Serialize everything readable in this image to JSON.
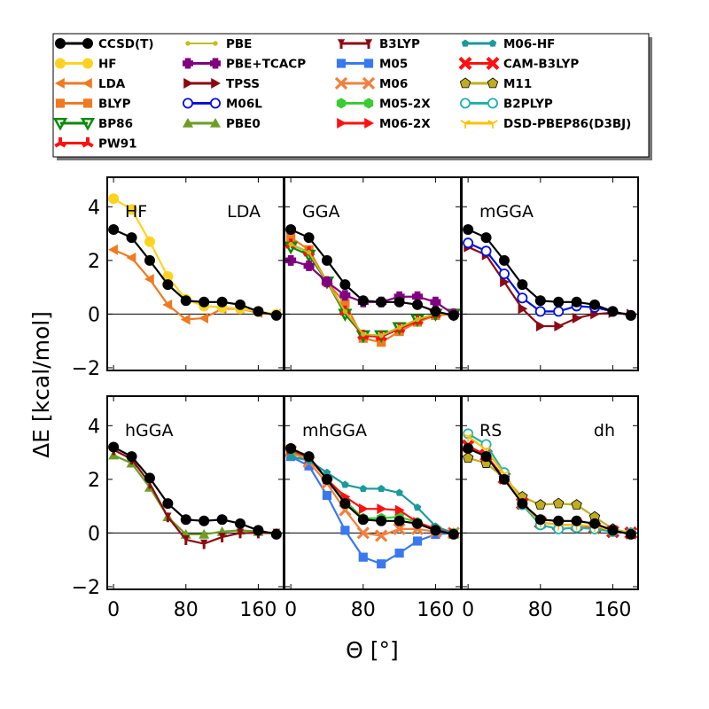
{
  "chart_data": {
    "type": "line",
    "title": "",
    "xlabel": "Θ [°]",
    "ylabel": "ΔE [kcal/mol]",
    "xlim": [
      -7,
      188
    ],
    "ylim": [
      -2.1,
      5.1
    ],
    "xticks": [
      0,
      80,
      160
    ],
    "xtick_labels": [
      "0",
      "80",
      "160"
    ],
    "yticks": [
      -2,
      0,
      2,
      4
    ],
    "ytick_labels": [
      "−2",
      "0",
      "2",
      "4"
    ],
    "x": [
      0,
      20,
      40,
      60,
      80,
      100,
      120,
      140,
      160,
      180
    ],
    "legend": {
      "placement": "top",
      "entries": [
        {
          "name": "CCSD(T)",
          "color": "#000000",
          "marker": "circle"
        },
        {
          "name": "HF",
          "color": "#FFD21F",
          "marker": "circle"
        },
        {
          "name": "LDA",
          "color": "#F07A20",
          "marker": "triangle-left"
        },
        {
          "name": "BLYP",
          "color": "#F07A20",
          "marker": "square"
        },
        {
          "name": "BP86",
          "color": "#0A8A0A",
          "marker": "triangle-down-open"
        },
        {
          "name": "PW91",
          "color": "#FF1010",
          "marker": "tri-star"
        },
        {
          "name": "PBE",
          "color": "#BFBF1F",
          "marker": "point"
        },
        {
          "name": "PBE+TCACP",
          "color": "#800080",
          "marker": "plus"
        },
        {
          "name": "TPSS",
          "color": "#8B0A14",
          "marker": "triangle-right"
        },
        {
          "name": "M06L",
          "color": "#0010E0",
          "marker": "circle-open"
        },
        {
          "name": "PBE0",
          "color": "#6B9E23",
          "marker": "triangle-up"
        },
        {
          "name": "B3LYP",
          "color": "#8B0A14",
          "marker": "dagger"
        },
        {
          "name": "M05",
          "color": "#3A78F0",
          "marker": "square"
        },
        {
          "name": "M06",
          "color": "#F08040",
          "marker": "x"
        },
        {
          "name": "M05-2X",
          "color": "#3ACD32",
          "marker": "hexagon"
        },
        {
          "name": "M06-2X",
          "color": "#FF1010",
          "marker": "triangle-right"
        },
        {
          "name": "M06-HF",
          "color": "#1A9A9A",
          "marker": "pentagon-small"
        },
        {
          "name": "CAM-B3LYP",
          "color": "#FF1010",
          "marker": "x-bold"
        },
        {
          "name": "M11",
          "color": "#BFAD1F",
          "marker": "pentagon"
        },
        {
          "name": "B2PLYP",
          "color": "#20B2AA",
          "marker": "circle-open"
        },
        {
          "name": "DSD-PBEP86(D3BJ)",
          "color": "#FFC000",
          "marker": "tri-down"
        }
      ]
    },
    "panels": [
      {
        "labels": [
          "HF",
          "LDA"
        ],
        "series": [
          {
            "name": "LDA",
            "values": [
              2.4,
              2.1,
              1.3,
              0.35,
              -0.2,
              -0.15,
              0.2,
              0.2,
              0.05,
              0.0
            ]
          },
          {
            "name": "HF",
            "values": [
              4.3,
              3.9,
              2.7,
              1.4,
              0.55,
              0.3,
              0.25,
              0.2,
              0.1,
              0.0
            ]
          },
          {
            "name": "CCSD(T)",
            "values": [
              3.15,
              2.85,
              2.0,
              1.1,
              0.5,
              0.45,
              0.45,
              0.35,
              0.1,
              -0.05
            ]
          }
        ]
      },
      {
        "labels": [
          "GGA"
        ],
        "series": [
          {
            "name": "BLYP",
            "values": [
              2.85,
              2.4,
              1.2,
              0.4,
              -0.9,
              -1.05,
              -0.65,
              -0.3,
              -0.05,
              0.0
            ]
          },
          {
            "name": "BP86",
            "values": [
              2.5,
              2.2,
              1.2,
              0.0,
              -0.8,
              -0.8,
              -0.5,
              -0.2,
              0.0,
              0.0
            ]
          },
          {
            "name": "PW91",
            "values": [
              2.6,
              2.3,
              1.2,
              0.1,
              -0.8,
              -0.85,
              -0.55,
              -0.25,
              0.0,
              0.0
            ]
          },
          {
            "name": "PBE",
            "values": [
              2.6,
              2.3,
              1.2,
              0.1,
              -0.75,
              -0.8,
              -0.5,
              -0.2,
              0.0,
              0.0
            ]
          },
          {
            "name": "PBE+TCACP",
            "values": [
              2.0,
              1.8,
              1.2,
              0.7,
              0.45,
              0.45,
              0.65,
              0.65,
              0.45,
              0.0
            ]
          },
          {
            "name": "CCSD(T)",
            "values": [
              3.15,
              2.85,
              2.0,
              1.1,
              0.5,
              0.45,
              0.45,
              0.35,
              0.1,
              -0.05
            ]
          }
        ]
      },
      {
        "labels": [
          "mGGA"
        ],
        "series": [
          {
            "name": "TPSS",
            "values": [
              2.5,
              2.2,
              1.2,
              0.2,
              -0.45,
              -0.45,
              -0.15,
              0.0,
              0.05,
              0.0
            ]
          },
          {
            "name": "M06L",
            "values": [
              2.65,
              2.35,
              1.5,
              0.6,
              0.1,
              0.1,
              0.3,
              0.25,
              0.1,
              -0.05
            ]
          },
          {
            "name": "CCSD(T)",
            "values": [
              3.15,
              2.85,
              2.0,
              1.1,
              0.5,
              0.45,
              0.45,
              0.35,
              0.1,
              -0.05
            ]
          }
        ]
      },
      {
        "labels": [
          "hGGA"
        ],
        "series": [
          {
            "name": "PBE0",
            "values": [
              2.9,
              2.6,
              1.7,
              0.6,
              -0.05,
              -0.05,
              0.05,
              0.1,
              0.05,
              0.0
            ]
          },
          {
            "name": "B3LYP",
            "values": [
              3.1,
              2.75,
              1.85,
              0.6,
              -0.25,
              -0.4,
              -0.15,
              0.0,
              0.0,
              0.0
            ]
          },
          {
            "name": "CCSD(T)",
            "values": [
              3.2,
              2.85,
              2.05,
              1.1,
              0.5,
              0.45,
              0.5,
              0.35,
              0.1,
              -0.05
            ]
          }
        ]
      },
      {
        "labels": [
          "mhGGA"
        ],
        "series": [
          {
            "name": "M05",
            "values": [
              2.85,
              2.5,
              1.4,
              0.1,
              -0.9,
              -1.15,
              -0.75,
              -0.3,
              -0.05,
              0.0
            ]
          },
          {
            "name": "M06",
            "values": [
              3.05,
              2.65,
              1.85,
              0.85,
              0.0,
              -0.1,
              0.15,
              0.15,
              0.05,
              0.0
            ]
          },
          {
            "name": "M05-2X",
            "values": [
              3.05,
              2.8,
              2.0,
              1.2,
              0.55,
              0.55,
              0.6,
              0.4,
              0.15,
              0.0
            ]
          },
          {
            "name": "M06-2X",
            "values": [
              3.1,
              2.8,
              2.0,
              1.35,
              0.9,
              0.9,
              0.85,
              0.4,
              0.15,
              0.0
            ]
          },
          {
            "name": "M06-HF",
            "values": [
              2.85,
              2.7,
              2.25,
              1.8,
              1.65,
              1.65,
              1.5,
              0.95,
              0.25,
              0.0
            ]
          },
          {
            "name": "CCSD(T)",
            "values": [
              3.15,
              2.85,
              2.0,
              1.1,
              0.5,
              0.45,
              0.45,
              0.35,
              0.1,
              -0.05
            ]
          }
        ]
      },
      {
        "labels": [
          "RS",
          "dh"
        ],
        "series": [
          {
            "name": "M11",
            "values": [
              2.8,
              2.6,
              2.05,
              1.35,
              1.05,
              1.1,
              1.05,
              0.6,
              0.15,
              0.0
            ]
          },
          {
            "name": "CAM-B3LYP",
            "values": [
              3.25,
              2.9,
              2.05,
              1.1,
              0.4,
              0.3,
              0.3,
              0.2,
              0.05,
              0.0
            ]
          },
          {
            "name": "B2PLYP",
            "values": [
              3.7,
              3.3,
              2.25,
              1.05,
              0.3,
              0.15,
              0.2,
              0.15,
              0.05,
              0.0
            ]
          },
          {
            "name": "DSD-PBEP86(D3BJ)",
            "values": [
              3.6,
              3.1,
              2.2,
              1.1,
              0.4,
              0.3,
              0.3,
              0.25,
              0.1,
              0.0
            ]
          },
          {
            "name": "CCSD(T)",
            "values": [
              3.15,
              2.85,
              2.0,
              1.1,
              0.5,
              0.45,
              0.45,
              0.35,
              0.1,
              -0.05
            ]
          }
        ]
      }
    ]
  }
}
